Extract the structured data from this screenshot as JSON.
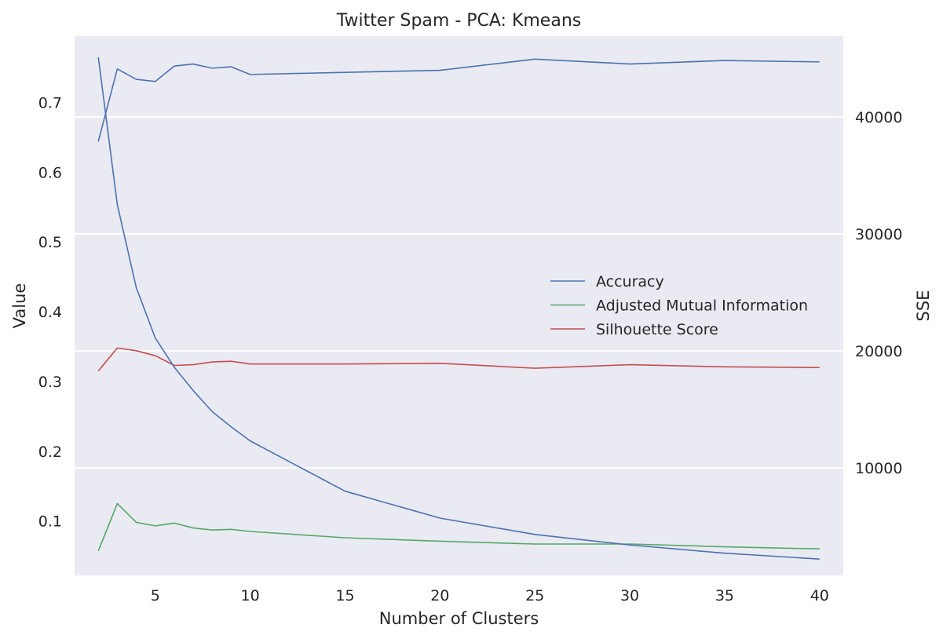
{
  "chart_data": {
    "type": "line",
    "title": "Twitter Spam - PCA: Kmeans",
    "xlabel": "Number of Clusters",
    "ylabel_left": "Value",
    "ylabel_right": "SSE",
    "x": [
      2,
      3,
      4,
      5,
      6,
      7,
      8,
      9,
      10,
      15,
      20,
      25,
      30,
      35,
      40
    ],
    "xticks": [
      5,
      10,
      15,
      20,
      25,
      30,
      35,
      40
    ],
    "xlim": [
      0.75,
      41.25
    ],
    "yticks_left": [
      0.1,
      0.2,
      0.3,
      0.4,
      0.5,
      0.6,
      0.7
    ],
    "ylim_left": [
      0.022,
      0.795
    ],
    "yticks_right": [
      10000,
      20000,
      30000,
      40000
    ],
    "ylim_right": [
      800,
      46900
    ],
    "grid": true,
    "legend_position": "center-right",
    "background": "#eaeaf2",
    "series": [
      {
        "name": "Accuracy",
        "axis": "left",
        "color": "#4c72b0",
        "values": [
          0.644,
          0.748,
          0.733,
          0.73,
          0.752,
          0.755,
          0.749,
          0.751,
          0.74,
          0.743,
          0.746,
          0.762,
          0.755,
          0.76,
          0.758
        ]
      },
      {
        "name": "Adjusted Mutual Information",
        "axis": "left",
        "color": "#55a868",
        "values": [
          0.057,
          0.125,
          0.098,
          0.093,
          0.097,
          0.09,
          0.087,
          0.088,
          0.085,
          0.076,
          0.071,
          0.067,
          0.067,
          0.063,
          0.06
        ]
      },
      {
        "name": "Silhouette Score",
        "axis": "left",
        "color": "#c44e52",
        "values": [
          0.315,
          0.348,
          0.344,
          0.337,
          0.323,
          0.324,
          0.328,
          0.329,
          0.325,
          0.325,
          0.326,
          0.319,
          0.324,
          0.321,
          0.32
        ]
      },
      {
        "name": "SSE",
        "axis": "right",
        "color": "#4c72b0",
        "values": [
          45100,
          32500,
          25400,
          21100,
          18600,
          16600,
          14800,
          13500,
          12300,
          8000,
          5700,
          4300,
          3400,
          2700,
          2200
        ]
      }
    ],
    "legend": [
      "Accuracy",
      "Adjusted Mutual Information",
      "Silhouette Score"
    ]
  }
}
